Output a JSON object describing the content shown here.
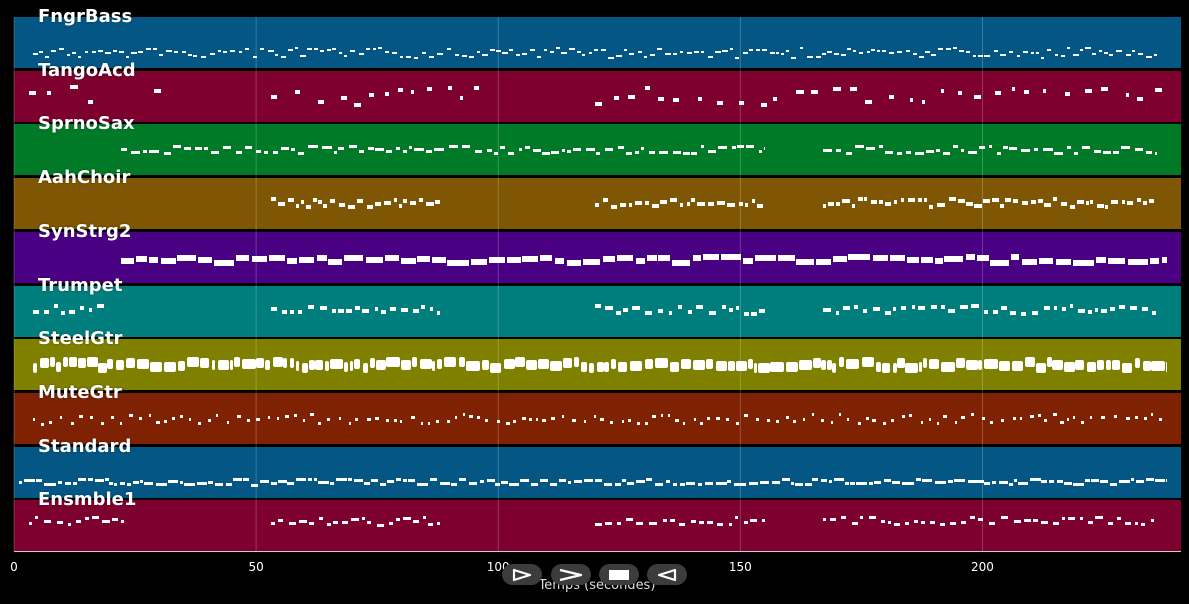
{
  "xaxis": {
    "label": "Temps (secondes)",
    "range": [
      0,
      241
    ],
    "ticks": [
      0,
      50,
      100,
      150,
      200
    ],
    "tick_labels": [
      "0",
      "50",
      "100",
      "150",
      "200"
    ]
  },
  "tracks": [
    {
      "name": "FngrBass",
      "color": "#045684"
    },
    {
      "name": "TangoAcd",
      "color": "#7d002e"
    },
    {
      "name": "SprnoSax",
      "color": "#007a26"
    },
    {
      "name": "AahChoir",
      "color": "#7f5603"
    },
    {
      "name": "SynStrg2",
      "color": "#4a0082"
    },
    {
      "name": "Trumpet",
      "color": "#007e7e"
    },
    {
      "name": "SteelGtr",
      "color": "#7f7f00"
    },
    {
      "name": "MuteGtr",
      "color": "#7f2203"
    },
    {
      "name": "Standard",
      "color": "#045684"
    },
    {
      "name": "Ensmble1",
      "color": "#7d002e"
    }
  ],
  "controls": {
    "play": {
      "icon": "play-outline-icon"
    },
    "forward": {
      "icon": "chevron-right-icon"
    },
    "stop": {
      "icon": "stop-icon"
    },
    "rewind": {
      "icon": "rewind-icon"
    }
  }
}
